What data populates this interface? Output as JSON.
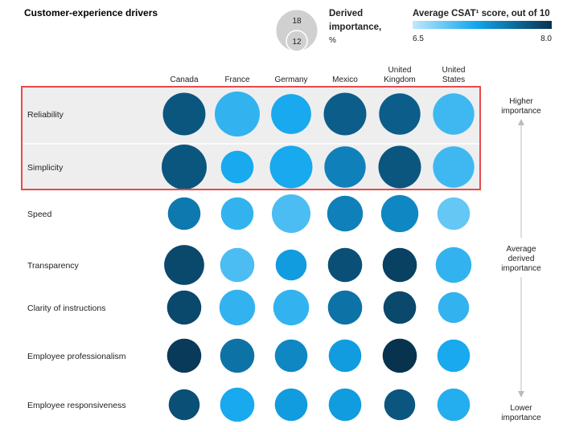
{
  "header": {
    "title": "Customer-experience drivers",
    "size_legend": {
      "title_line1": "Derived",
      "title_line2": "importance,",
      "unit": "%",
      "large_value": "18",
      "small_value": "12"
    },
    "color_legend": {
      "title": "Average CSAT¹ score, out of 10",
      "min_label": "6.5",
      "max_label": "8.0",
      "color_min": "#bfe9fb",
      "color_mid": "#12a7ee",
      "color_max": "#08334f"
    }
  },
  "side_labels": {
    "higher_line1": "Higher",
    "higher_line2": "importance",
    "average_line1": "Average",
    "average_line2": "derived",
    "average_line3": "importance",
    "lower_line1": "Lower",
    "lower_line2": "importance"
  },
  "highlight_color": "#e84a4a",
  "chart_data": {
    "type": "bubble-matrix",
    "title": "Customer-experience drivers",
    "size_measure": "Derived importance, %",
    "color_measure": "Average CSAT score, out of 10",
    "color_range": [
      6.5,
      8.0
    ],
    "columns": [
      {
        "lines": [
          "Canada"
        ]
      },
      {
        "lines": [
          "France"
        ]
      },
      {
        "lines": [
          "Germany"
        ]
      },
      {
        "lines": [
          "Mexico"
        ]
      },
      {
        "lines": [
          "United",
          "Kingdom"
        ]
      },
      {
        "lines": [
          "United",
          "States"
        ]
      }
    ],
    "rows": [
      {
        "driver": "Reliability",
        "highlighted": true,
        "importance": [
          17,
          19,
          15,
          17,
          16,
          16
        ],
        "csat": [
          7.75,
          7.05,
          7.15,
          7.7,
          7.7,
          7.0
        ]
      },
      {
        "driver": "Simplicity",
        "highlighted": true,
        "importance": [
          19,
          10,
          17,
          16,
          17,
          16
        ],
        "csat": [
          7.75,
          7.15,
          7.15,
          7.45,
          7.75,
          7.0
        ]
      },
      {
        "driver": "Speed",
        "highlighted": false,
        "importance": [
          10,
          10,
          14,
          12,
          13,
          10
        ],
        "csat": [
          7.5,
          7.05,
          6.95,
          7.45,
          7.4,
          6.85
        ]
      },
      {
        "driver": "Transparency",
        "highlighted": false,
        "importance": [
          15,
          11,
          9,
          11,
          11,
          12
        ],
        "csat": [
          7.85,
          6.95,
          7.25,
          7.8,
          7.9,
          7.05
        ]
      },
      {
        "driver": "Clarity of instructions",
        "highlighted": false,
        "importance": [
          11,
          12,
          12,
          11,
          10,
          9
        ],
        "csat": [
          7.85,
          7.05,
          7.05,
          7.55,
          7.85,
          7.05
        ]
      },
      {
        "driver": "Employee professionalism",
        "highlighted": false,
        "importance": [
          11,
          11,
          10,
          10,
          11,
          10
        ],
        "csat": [
          7.95,
          7.55,
          7.4,
          7.25,
          8.0,
          7.15
        ]
      },
      {
        "driver": "Employee responsiveness",
        "highlighted": false,
        "importance": [
          9,
          11,
          10,
          10,
          9,
          10
        ],
        "csat": [
          7.8,
          7.15,
          7.25,
          7.25,
          7.75,
          7.1
        ]
      }
    ]
  }
}
